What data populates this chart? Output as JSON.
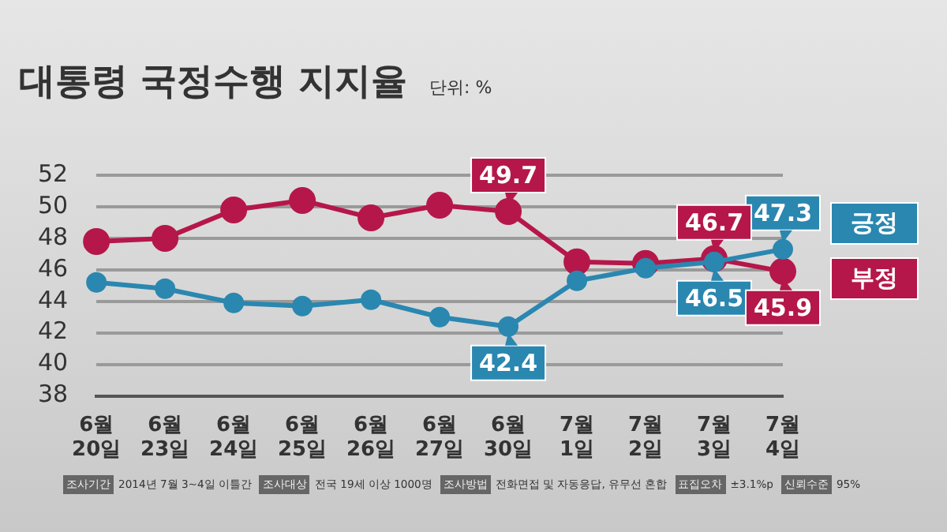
{
  "chart_data": {
    "type": "line",
    "title": "대통령 국정수행 지지율",
    "subtitle": "단위: %",
    "categories": [
      "6월 20일",
      "6월 23일",
      "6월 24일",
      "6월 25일",
      "6월 26일",
      "6월 27일",
      "6월 30일",
      "7월 1일",
      "7월 2일",
      "7월 3일",
      "7월 4일"
    ],
    "series": [
      {
        "name": "긍정",
        "color": "#2a87b0",
        "values": [
          45.2,
          44.8,
          43.9,
          43.7,
          44.1,
          43.0,
          42.4,
          45.3,
          46.1,
          46.5,
          47.3
        ],
        "value_labels": [
          null,
          null,
          null,
          null,
          null,
          null,
          "42.4",
          null,
          null,
          "46.5",
          "47.3"
        ]
      },
      {
        "name": "부정",
        "color": "#b5174a",
        "values": [
          47.8,
          48.0,
          49.8,
          50.4,
          49.3,
          50.1,
          49.7,
          46.5,
          46.4,
          46.7,
          45.9
        ],
        "value_labels": [
          null,
          null,
          null,
          null,
          null,
          null,
          "49.7",
          null,
          null,
          "46.7",
          "45.9"
        ]
      }
    ],
    "ylim": [
      38,
      52
    ],
    "yticks": [
      38,
      40,
      42,
      44,
      46,
      48,
      50,
      52
    ],
    "grid": "y",
    "legend": "right",
    "marker": "circle",
    "line_style": "solid",
    "annotations": [
      "조사기간 2014년 7월 3~4일 이틀간",
      "조사대상 전국 19세 이상 1000명",
      "조사방법 전화면접 및 자동응답, 유무선 혼합",
      "표집오차 ±3.1%p",
      "신뢰수준 95%"
    ]
  }
}
